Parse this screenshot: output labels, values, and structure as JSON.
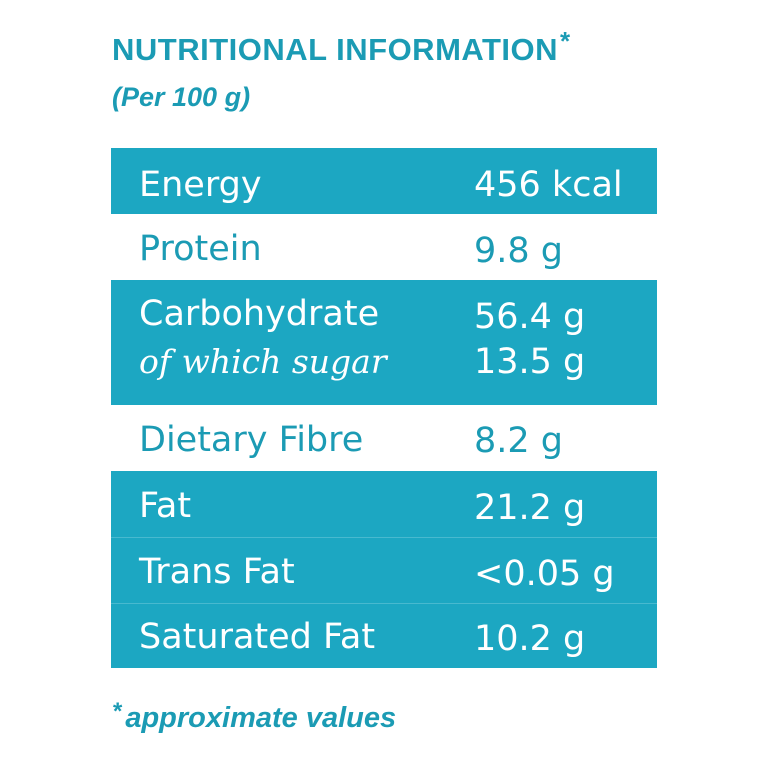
{
  "title": "NUTRITIONAL INFORMATION",
  "title_mark": "*",
  "subtitle": "(Per 100 g)",
  "rows": [
    {
      "label": "Energy",
      "value": "456 kcal"
    },
    {
      "label": "Protein",
      "value": "9.8 g"
    },
    {
      "label": "Carbohydrate",
      "value": "56.4 g",
      "sub_label": "of which sugar",
      "sub_value": "13.5 g"
    },
    {
      "label": "Dietary Fibre",
      "value": "8.2 g"
    },
    {
      "label": "Fat",
      "value": "21.2 g"
    },
    {
      "label": "Trans Fat",
      "value": "<0.05 g"
    },
    {
      "label": "Saturated Fat",
      "value": "10.2 g"
    }
  ],
  "footnote_mark": "*",
  "footnote": "approximate values",
  "colors": {
    "accent": "#1ca7c2",
    "text_on_white": "#1b9bb4",
    "text_on_accent": "#ffffff"
  }
}
